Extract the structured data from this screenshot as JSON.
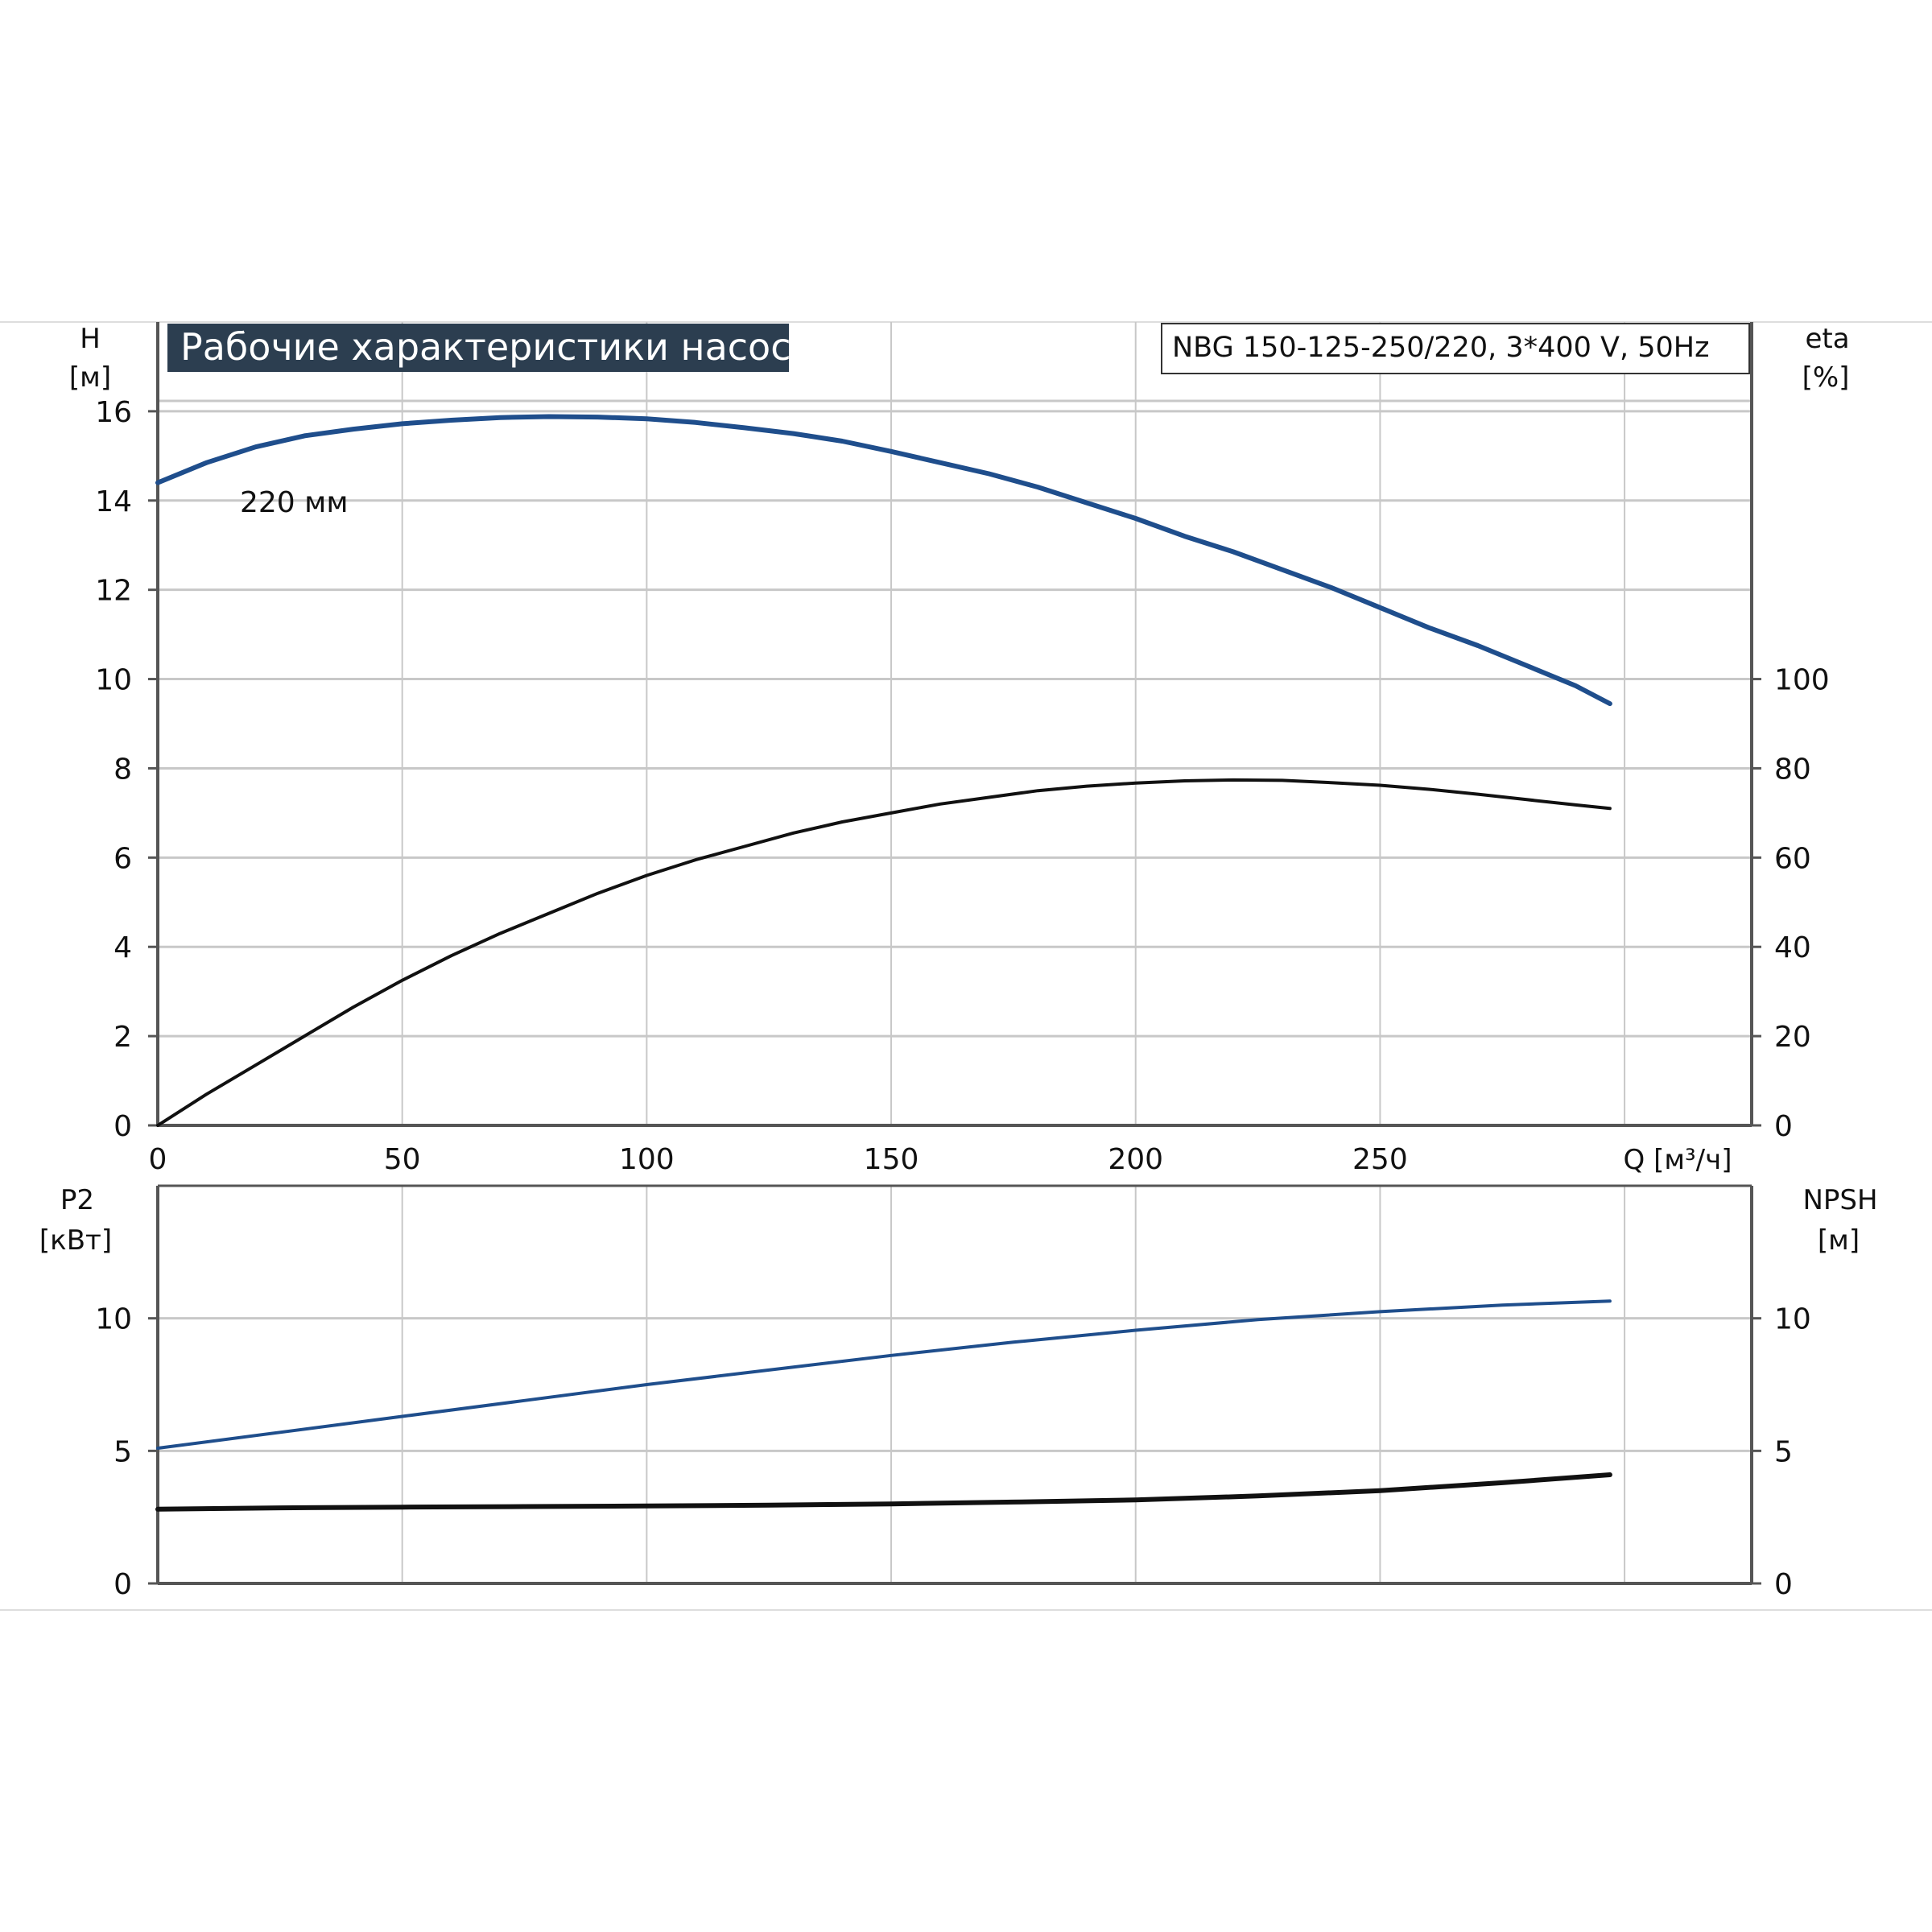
{
  "chart_title": "Рабочие характеристики насоса",
  "model_label": "NBG 150-125-250/220, 3*400 V, 50Hz",
  "colors": {
    "title_bg": "#2c3e50",
    "grid": "#c8c8c8",
    "axis": "#555555",
    "blue_curve": "#1f4e8c",
    "black_curve": "#111111"
  },
  "chart_data": [
    {
      "type": "line",
      "x_label": "Q [м³/ч]",
      "xlim": [
        0,
        326
      ],
      "x_ticks": [
        0,
        50,
        100,
        150,
        200,
        250
      ],
      "left_axis": {
        "label_line1": "H",
        "label_line2": "[м]",
        "ylim": [
          0,
          18
        ],
        "ticks": [
          0,
          2,
          4,
          6,
          8,
          10,
          12,
          14,
          16
        ]
      },
      "right_axis": {
        "label_line1": "eta",
        "label_line2": "[%]",
        "ylim": [
          0,
          180
        ],
        "ticks": [
          0,
          20,
          40,
          60,
          80,
          100
        ]
      },
      "grid": true,
      "series": [
        {
          "name": "220 мм",
          "axis": "left",
          "x": [
            0,
            10,
            20,
            30,
            40,
            50,
            60,
            70,
            80,
            90,
            100,
            110,
            120,
            130,
            140,
            150,
            160,
            170,
            180,
            190,
            200,
            210,
            220,
            230,
            240,
            250,
            260,
            270,
            280,
            290,
            297
          ],
          "y": [
            14.4,
            14.85,
            15.2,
            15.45,
            15.6,
            15.72,
            15.8,
            15.86,
            15.88,
            15.87,
            15.83,
            15.75,
            15.63,
            15.5,
            15.33,
            15.1,
            14.85,
            14.6,
            14.3,
            13.95,
            13.6,
            13.2,
            12.85,
            12.45,
            12.05,
            11.6,
            11.15,
            10.75,
            10.3,
            9.85,
            9.45
          ]
        },
        {
          "name": "eta",
          "axis": "right",
          "x": [
            0,
            10,
            20,
            30,
            40,
            50,
            60,
            70,
            80,
            90,
            100,
            110,
            120,
            130,
            140,
            150,
            160,
            170,
            180,
            190,
            200,
            210,
            220,
            230,
            240,
            250,
            260,
            270,
            280,
            290,
            297
          ],
          "y": [
            0,
            7,
            13.5,
            20,
            26.5,
            32.5,
            38,
            43,
            47.5,
            52,
            56,
            59.5,
            62.5,
            65.5,
            68,
            70,
            72,
            73.5,
            75,
            76,
            76.7,
            77.2,
            77.4,
            77.3,
            76.8,
            76.2,
            75.3,
            74.2,
            73,
            71.8,
            71
          ]
        }
      ]
    },
    {
      "type": "line",
      "xlim": [
        0,
        326
      ],
      "left_axis": {
        "label_line1": "P2",
        "label_line2": "[кВт]",
        "ylim": [
          0,
          15
        ],
        "ticks": [
          0,
          5,
          10
        ]
      },
      "right_axis": {
        "label_line1": "NPSH",
        "label_line2": "[м]",
        "ylim": [
          0,
          15
        ],
        "ticks": [
          0,
          5,
          10
        ]
      },
      "grid": true,
      "series": [
        {
          "name": "P2",
          "axis": "left",
          "x": [
            0,
            25,
            50,
            75,
            100,
            125,
            150,
            175,
            200,
            225,
            250,
            275,
            297
          ],
          "y": [
            5.1,
            5.7,
            6.3,
            6.9,
            7.5,
            8.05,
            8.6,
            9.1,
            9.55,
            9.95,
            10.25,
            10.5,
            10.65
          ]
        },
        {
          "name": "NPSH",
          "axis": "right",
          "x": [
            0,
            25,
            50,
            75,
            100,
            125,
            150,
            175,
            200,
            225,
            250,
            275,
            297
          ],
          "y": [
            2.8,
            2.85,
            2.88,
            2.9,
            2.92,
            2.95,
            3.0,
            3.07,
            3.15,
            3.3,
            3.5,
            3.8,
            4.1
          ]
        }
      ]
    }
  ]
}
